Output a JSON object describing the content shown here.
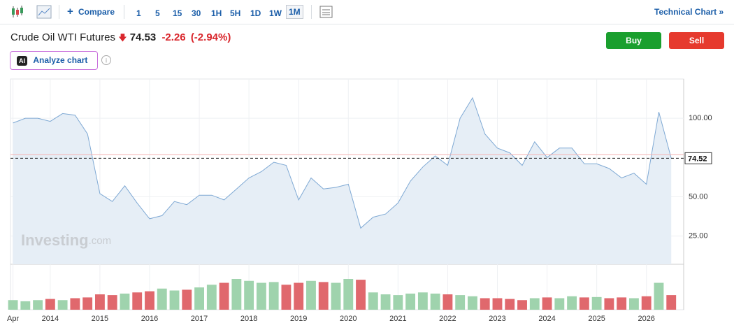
{
  "toolbar": {
    "compare": "Compare",
    "intervals": [
      "1",
      "5",
      "15",
      "30",
      "1H",
      "5H",
      "1D",
      "1W",
      "1M"
    ],
    "active_interval": 8,
    "technical_link": "Technical Chart »"
  },
  "header": {
    "name": "Crude Oil WTI Futures",
    "price": "74.53",
    "change": "-2.26",
    "change_pct": "(-2.94%)",
    "buy": "Buy",
    "sell": "Sell",
    "ai_badge": "AI",
    "analyze": "Analyze chart"
  },
  "watermark": {
    "brand": "Investing",
    "suffix": ".com"
  },
  "chart_data": {
    "type": "line",
    "x": [
      2013.25,
      2013.5,
      2013.75,
      2014,
      2014.25,
      2014.5,
      2014.75,
      2015,
      2015.25,
      2015.5,
      2015.75,
      2016,
      2016.25,
      2016.5,
      2016.75,
      2017,
      2017.25,
      2017.5,
      2017.75,
      2018,
      2018.25,
      2018.5,
      2018.75,
      2019,
      2019.25,
      2019.5,
      2019.75,
      2020,
      2020.25,
      2020.5,
      2020.75,
      2021,
      2021.25,
      2021.5,
      2021.75,
      2022,
      2022.25,
      2022.5,
      2022.75,
      2023,
      2023.25,
      2023.5,
      2023.75,
      2024,
      2024.25,
      2024.5,
      2024.75,
      2025,
      2025.25,
      2025.5,
      2025.75,
      2026,
      2026.25,
      2026.5
    ],
    "series": [
      {
        "name": "Price",
        "color": "#7fa9d4",
        "values": [
          97,
          100,
          100,
          98,
          103,
          102,
          90,
          52,
          47,
          57,
          46,
          36,
          38,
          47,
          45,
          51,
          51,
          48,
          55,
          62,
          66,
          72,
          70,
          48,
          62,
          55,
          56,
          58,
          30,
          37,
          39,
          46,
          60,
          69,
          76,
          70,
          100,
          113,
          90,
          81,
          78,
          70,
          85,
          75,
          81,
          81,
          71,
          71,
          68,
          62,
          65,
          58,
          104,
          74.52
        ]
      },
      {
        "name": "Volume",
        "axis": "y2",
        "up_color": "#9fd3ad",
        "down_color": "#e0686d",
        "values": [
          25,
          22,
          25,
          28,
          25,
          30,
          32,
          40,
          38,
          42,
          45,
          48,
          55,
          50,
          52,
          58,
          65,
          70,
          80,
          75,
          70,
          72,
          65,
          70,
          75,
          72,
          70,
          80,
          78,
          45,
          40,
          38,
          42,
          45,
          42,
          40,
          38,
          35,
          30,
          30,
          28,
          25,
          30,
          32,
          30,
          35,
          32,
          33,
          30,
          32,
          30,
          35,
          70,
          38
        ]
      }
    ],
    "xlim": [
      2013.2,
      2026.75
    ],
    "xticks": [
      {
        "value": 2013.25,
        "label": "Apr"
      },
      2014,
      2015,
      2016,
      2017,
      2018,
      2019,
      2020,
      2021,
      2022,
      2023,
      2024,
      2025,
      2026
    ],
    "ylim": [
      7,
      125
    ],
    "yticks": [
      {
        "value": 25,
        "label": "25.00"
      },
      {
        "value": 50,
        "label": "50.00"
      },
      {
        "value": 100,
        "label": "100.00"
      }
    ],
    "y2lim": [
      0,
      100
    ],
    "price_marker": 74.52,
    "previous_close": 76.79,
    "grid": true
  }
}
